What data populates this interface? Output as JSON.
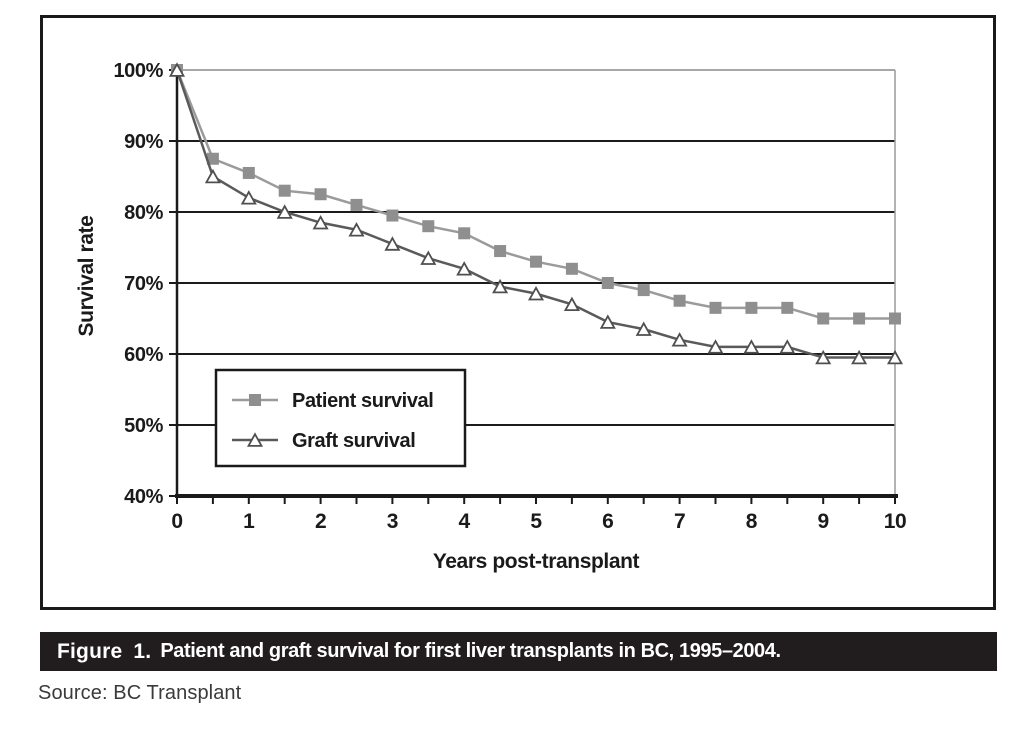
{
  "figure": {
    "caption_label": "Figure 1.",
    "caption_text": "Patient and graft survival for first liver transplants in BC, 1995–2004.",
    "source": "Source: BC Transplant"
  },
  "chart_data": {
    "type": "line",
    "title": "",
    "xlabel": "Years post-transplant",
    "ylabel": "Survival rate",
    "xlim": [
      0,
      10
    ],
    "ylim": [
      40,
      100
    ],
    "x_major_ticks": [
      0,
      1,
      2,
      3,
      4,
      5,
      6,
      7,
      8,
      9,
      10
    ],
    "x_minor_tick_step": 0.5,
    "y_ticks": [
      40,
      50,
      60,
      70,
      80,
      90,
      100
    ],
    "y_tick_suffix": "%",
    "grid": "horizontal",
    "legend_position": "inside-lower-left",
    "x": [
      0,
      0.5,
      1,
      1.5,
      2,
      2.5,
      3,
      3.5,
      4,
      4.5,
      5,
      5.5,
      6,
      6.5,
      7,
      7.5,
      8,
      8.5,
      9,
      9.5,
      10
    ],
    "series": [
      {
        "name": "Patient survival",
        "marker": "square",
        "line_color": "#9b9b9b",
        "marker_fill": "#8f8f8f",
        "marker_stroke": "#8f8f8f",
        "values": [
          100,
          87.5,
          85.5,
          83,
          82.5,
          81,
          79.5,
          78,
          77,
          74.5,
          73,
          72,
          70,
          69,
          67.5,
          66.5,
          66.5,
          66.5,
          65,
          65,
          65
        ]
      },
      {
        "name": "Graft survival",
        "marker": "triangle-open",
        "line_color": "#5a5a5a",
        "marker_fill": "#ffffff",
        "marker_stroke": "#4f4f4f",
        "values": [
          100,
          85,
          82,
          80,
          78.5,
          77.5,
          75.5,
          73.5,
          72,
          69.5,
          68.5,
          67,
          64.5,
          63.5,
          62,
          61,
          61,
          61,
          59.5,
          59.5,
          59.5
        ]
      }
    ],
    "colors": {
      "grid": "#1b1b1b",
      "grid_top": "#8a8a8a",
      "axis": "#1a1a1a",
      "plot_right_border": "#9a9a9a",
      "caption_bar_bg": "#211d1e",
      "caption_text": "#ffffff"
    }
  }
}
